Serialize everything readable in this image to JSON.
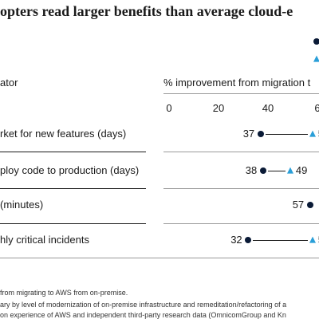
{
  "chart_data": {
    "type": "dot-range",
    "title": "opters read larger benefits than average cloud-e",
    "header_left": "ator",
    "header_right": "% improvement from migration t",
    "xaxis_ticks": [
      "0",
      "20",
      "40",
      "6"
    ],
    "xlim": [
      0,
      60
    ],
    "rows": [
      {
        "label": "rket for new features (days)",
        "low": 37,
        "low_label": "37",
        "high": 58,
        "high_label": "5"
      },
      {
        "label": "ploy code to production (days)",
        "low": 38,
        "low_label": "38",
        "high": 49,
        "high_label": "49"
      },
      {
        "label": "(minutes)",
        "low": 57,
        "low_label": "57",
        "high": null,
        "high_label": ""
      },
      {
        "label": "hly critical incidents",
        "low": 32,
        "low_label": "32",
        "high": 58,
        "high_label": "5"
      }
    ],
    "colors": {
      "low": "#0a1a36",
      "high": "#2a9fd8"
    }
  },
  "footnotes": [
    "from migrating to AWS from on-premise.",
    "ary by level of modernization of on-premise infrastructure and remeditation/refactoring of a",
    "on experience of AWS and independent third-party research data (OmnicomGroup and Kn"
  ]
}
